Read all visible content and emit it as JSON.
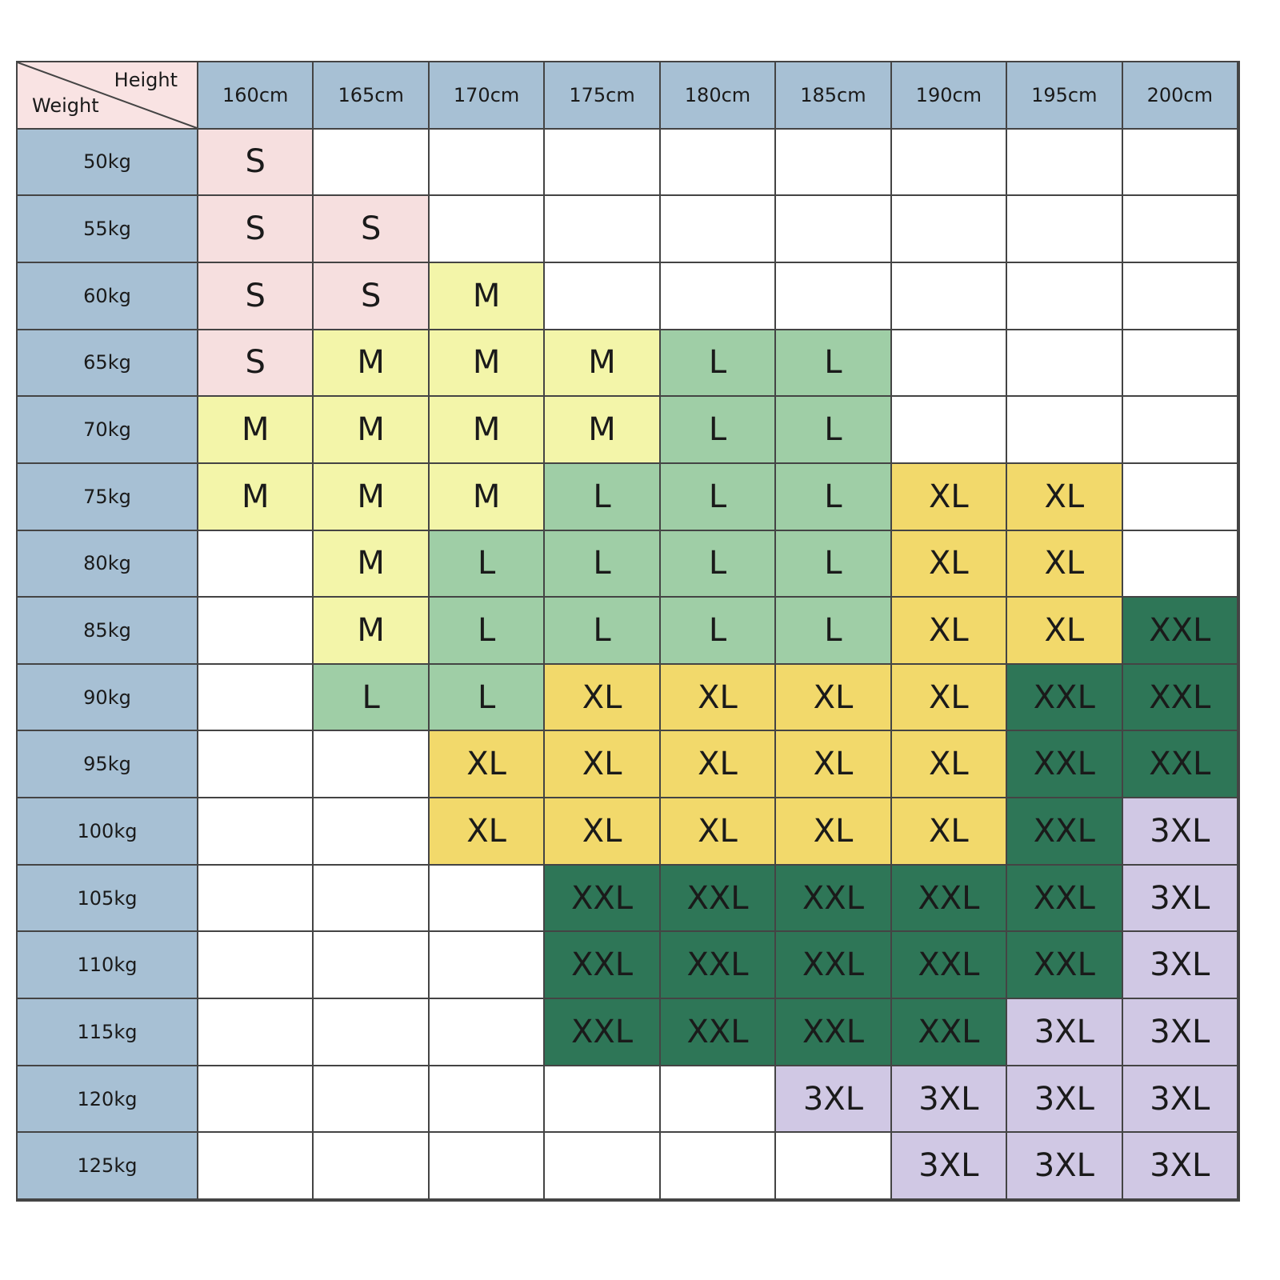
{
  "corner": {
    "column_label": "Height",
    "row_label": "Weight"
  },
  "columns": [
    "160cm",
    "165cm",
    "170cm",
    "175cm",
    "180cm",
    "185cm",
    "190cm",
    "195cm",
    "200cm"
  ],
  "rows": [
    {
      "label": "50kg",
      "cells": [
        "S",
        null,
        null,
        null,
        null,
        null,
        null,
        null,
        null
      ]
    },
    {
      "label": "55kg",
      "cells": [
        "S",
        "S",
        null,
        null,
        null,
        null,
        null,
        null,
        null
      ]
    },
    {
      "label": "60kg",
      "cells": [
        "S",
        "S",
        "M",
        null,
        null,
        null,
        null,
        null,
        null
      ]
    },
    {
      "label": "65kg",
      "cells": [
        "S",
        "M",
        "M",
        "M",
        "L",
        "L",
        null,
        null,
        null
      ]
    },
    {
      "label": "70kg",
      "cells": [
        "M",
        "M",
        "M",
        "M",
        "L",
        "L",
        null,
        null,
        null
      ]
    },
    {
      "label": "75kg",
      "cells": [
        "M",
        "M",
        "M",
        "L",
        "L",
        "L",
        "XL",
        "XL",
        null
      ]
    },
    {
      "label": "80kg",
      "cells": [
        null,
        "M",
        "L",
        "L",
        "L",
        "L",
        "XL",
        "XL",
        null
      ]
    },
    {
      "label": "85kg",
      "cells": [
        null,
        "M",
        "L",
        "L",
        "L",
        "L",
        "XL",
        "XL",
        "XXL"
      ]
    },
    {
      "label": "90kg",
      "cells": [
        null,
        "L",
        "L",
        "XL",
        "XL",
        "XL",
        "XL",
        "XXL",
        "XXL"
      ]
    },
    {
      "label": "95kg",
      "cells": [
        null,
        null,
        "XL",
        "XL",
        "XL",
        "XL",
        "XL",
        "XXL",
        "XXL"
      ]
    },
    {
      "label": "100kg",
      "cells": [
        null,
        null,
        "XL",
        "XL",
        "XL",
        "XL",
        "XL",
        "XXL",
        "3XL"
      ]
    },
    {
      "label": "105kg",
      "cells": [
        null,
        null,
        null,
        "XXL",
        "XXL",
        "XXL",
        "XXL",
        "XXL",
        "3XL"
      ]
    },
    {
      "label": "110kg",
      "cells": [
        null,
        null,
        null,
        "XXL",
        "XXL",
        "XXL",
        "XXL",
        "XXL",
        "3XL"
      ]
    },
    {
      "label": "115kg",
      "cells": [
        null,
        null,
        null,
        "XXL",
        "XXL",
        "XXL",
        "XXL",
        "3XL",
        "3XL"
      ]
    },
    {
      "label": "120kg",
      "cells": [
        null,
        null,
        null,
        null,
        null,
        "3XL",
        "3XL",
        "3XL",
        "3XL"
      ]
    },
    {
      "label": "125kg",
      "cells": [
        null,
        null,
        null,
        null,
        null,
        null,
        "3XL",
        "3XL",
        "3XL"
      ]
    }
  ],
  "size_colors": {
    "S": "#f6dfdf",
    "M": "#f3f5a9",
    "L": "#9fcea6",
    "XL": "#f2d96b",
    "XXL": "#2e7657",
    "3XL": "#d0c8e4"
  }
}
